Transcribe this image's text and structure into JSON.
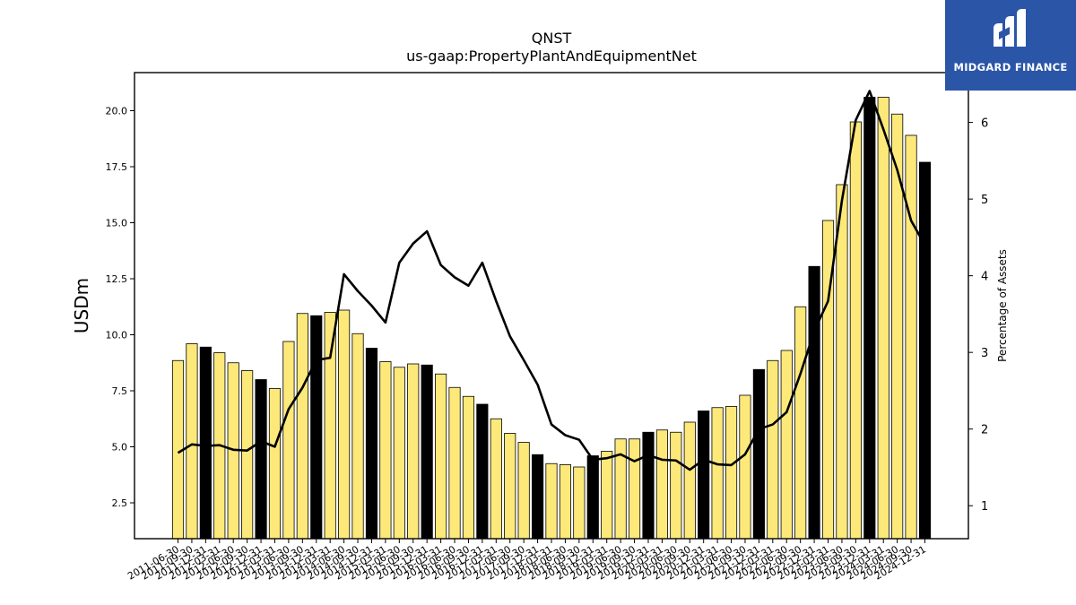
{
  "chart_data": {
    "type": "bar",
    "title": "QNST",
    "subtitle": "us-gaap:PropertyPlantAndEquipmentNet",
    "ylabel": "USDm",
    "y2label": "Percentage of Assets",
    "ylim": [
      0.9,
      21.7
    ],
    "y2lim": [
      0.57,
      6.65
    ],
    "yticks": [
      "2.5",
      "5.0",
      "7.5",
      "10.0",
      "12.5",
      "15.0",
      "17.5",
      "20.0"
    ],
    "y2ticks": [
      "1",
      "2",
      "3",
      "4",
      "5",
      "6"
    ],
    "categories": [
      "2011-06-30",
      "2011-09-30",
      "2011-12-31",
      "2012-03-31",
      "2012-06-30",
      "2012-09-30",
      "2012-12-31",
      "2013-03-31",
      "2013-06-30",
      "2013-09-30",
      "2013-12-31",
      "2014-03-31",
      "2014-06-30",
      "2014-09-30",
      "2014-12-31",
      "2015-03-31",
      "2015-06-30",
      "2015-09-30",
      "2015-12-31",
      "2016-03-31",
      "2016-06-30",
      "2016-09-30",
      "2016-12-31",
      "2017-03-31",
      "2017-06-30",
      "2017-09-30",
      "2017-12-31",
      "2018-03-31",
      "2018-06-30",
      "2018-09-30",
      "2018-12-31",
      "2019-03-31",
      "2019-06-30",
      "2019-09-30",
      "2019-12-31",
      "2020-03-31",
      "2020-06-30",
      "2020-09-30",
      "2020-12-31",
      "2021-03-31",
      "2021-06-30",
      "2021-09-30",
      "2021-12-31",
      "2022-03-31",
      "2022-06-30",
      "2022-09-30",
      "2022-12-31",
      "2023-03-31",
      "2023-06-30",
      "2023-09-30",
      "2023-12-31",
      "2024-03-31",
      "2024-06-30",
      "2024-09-30",
      "2024-12-31"
    ],
    "series": [
      {
        "type": "bar",
        "axis": "left",
        "values": [
          8.85,
          9.6,
          9.45,
          9.2,
          8.75,
          8.4,
          8.0,
          7.6,
          9.7,
          10.95,
          10.85,
          11.0,
          11.1,
          10.05,
          9.4,
          8.8,
          8.55,
          8.7,
          8.65,
          8.25,
          7.65,
          7.25,
          6.9,
          6.25,
          5.6,
          5.2,
          4.65,
          4.25,
          4.2,
          4.1,
          4.6,
          4.8,
          5.35,
          5.35,
          5.65,
          5.75,
          5.65,
          6.1,
          6.6,
          6.75,
          6.8,
          7.3,
          8.45,
          8.85,
          9.3,
          11.25,
          13.05,
          15.1,
          16.7,
          19.5,
          20.6,
          20.6,
          19.85,
          18.9,
          17.7
        ],
        "highlight": [
          false,
          false,
          true,
          false,
          false,
          false,
          true,
          false,
          false,
          false,
          true,
          false,
          false,
          false,
          true,
          false,
          false,
          false,
          true,
          false,
          false,
          false,
          true,
          false,
          false,
          false,
          true,
          false,
          false,
          false,
          true,
          false,
          false,
          false,
          true,
          false,
          false,
          false,
          true,
          false,
          false,
          false,
          true,
          false,
          false,
          false,
          true,
          false,
          false,
          false,
          true,
          false,
          false,
          false,
          true
        ]
      },
      {
        "type": "line",
        "axis": "right",
        "values": [
          1.69,
          1.8,
          1.78,
          1.79,
          1.73,
          1.72,
          1.84,
          1.77,
          2.26,
          2.54,
          2.9,
          2.93,
          4.02,
          3.8,
          3.61,
          3.39,
          4.17,
          4.42,
          4.58,
          4.14,
          3.98,
          3.87,
          4.17,
          3.67,
          3.21,
          2.9,
          2.58,
          2.06,
          1.92,
          1.86,
          1.6,
          1.62,
          1.67,
          1.58,
          1.66,
          1.6,
          1.59,
          1.47,
          1.6,
          1.54,
          1.53,
          1.67,
          2.0,
          2.06,
          2.22,
          2.72,
          3.28,
          3.67,
          4.98,
          6.03,
          6.41,
          5.91,
          5.38,
          4.72,
          4.4
        ]
      }
    ],
    "colors": {
      "bar": "#fde97a",
      "bar_highlight": "#000000",
      "line": "#000000"
    }
  },
  "logo": {
    "text": "MIDGARD FINANCE",
    "color": "#2b56a8"
  }
}
